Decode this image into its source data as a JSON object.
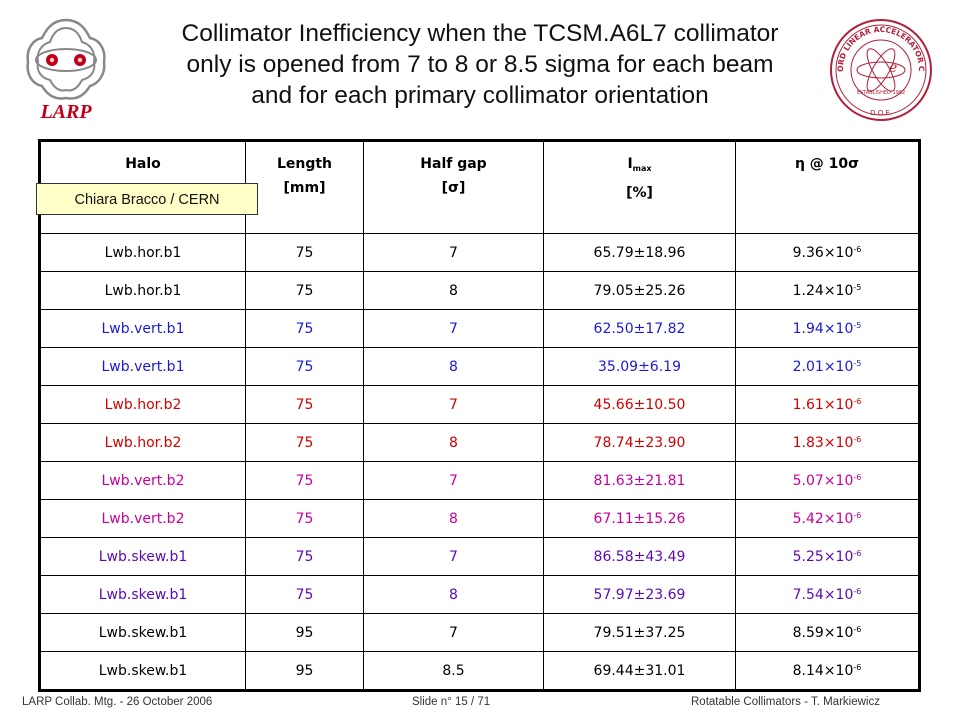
{
  "title": {
    "line1": "Collimator Inefficiency when the TCSM.A6L7 collimator",
    "line2": "only is opened from 7 to 8 or 8.5 sigma for each beam",
    "line3": "and for each primary collimator orientation"
  },
  "logos": {
    "left_text": "LARP",
    "right_text": "STANFORD LINEAR ACCELERATOR CENTER",
    "right_year": "ESTABLISHED 1962",
    "right_doe": "D.O.E."
  },
  "author_box": "Chiara Bracco / CERN",
  "table": {
    "headers": {
      "halo": "Halo",
      "length_1": "Length",
      "length_2": "[mm]",
      "halfgap_1": "Half gap",
      "halfgap_2": "[σ]",
      "imax_1": "I",
      "imax_sub": "max",
      "imax_2": "[%]",
      "eta": "η @ 10σ"
    },
    "rows": [
      {
        "halo": "Lwb.hor.b1",
        "length": "75",
        "halfgap": "7",
        "imax": "65.79±18.96",
        "eta_mant": "9.36×10",
        "eta_exp": "-6",
        "color": "black"
      },
      {
        "halo": "Lwb.hor.b1",
        "length": "75",
        "halfgap": "8",
        "imax": "79.05±25.26",
        "eta_mant": "1.24×10",
        "eta_exp": "-5",
        "color": "black"
      },
      {
        "halo": "Lwb.vert.b1",
        "length": "75",
        "halfgap": "7",
        "imax": "62.50±17.82",
        "eta_mant": "1.94×10",
        "eta_exp": "-5",
        "color": "blue"
      },
      {
        "halo": "Lwb.vert.b1",
        "length": "75",
        "halfgap": "8",
        "imax": "35.09±6.19",
        "eta_mant": "2.01×10",
        "eta_exp": "-5",
        "color": "blue"
      },
      {
        "halo": "Lwb.hor.b2",
        "length": "75",
        "halfgap": "7",
        "imax": "45.66±10.50",
        "eta_mant": "1.61×10",
        "eta_exp": "-6",
        "color": "red"
      },
      {
        "halo": "Lwb.hor.b2",
        "length": "75",
        "halfgap": "8",
        "imax": "78.74±23.90",
        "eta_mant": "1.83×10",
        "eta_exp": "-6",
        "color": "red"
      },
      {
        "halo": "Lwb.vert.b2",
        "length": "75",
        "halfgap": "7",
        "imax": "81.63±21.81",
        "eta_mant": "5.07×10",
        "eta_exp": "-6",
        "color": "magenta"
      },
      {
        "halo": "Lwb.vert.b2",
        "length": "75",
        "halfgap": "8",
        "imax": "67.11±15.26",
        "eta_mant": "5.42×10",
        "eta_exp": "-6",
        "color": "magenta"
      },
      {
        "halo": "Lwb.skew.b1",
        "length": "75",
        "halfgap": "7",
        "imax": "86.58±43.49",
        "eta_mant": "5.25×10",
        "eta_exp": "-6",
        "color": "purple"
      },
      {
        "halo": "Lwb.skew.b1",
        "length": "75",
        "halfgap": "8",
        "imax": "57.97±23.69",
        "eta_mant": "7.54×10",
        "eta_exp": "-6",
        "color": "purple"
      },
      {
        "halo": "Lwb.skew.b1",
        "length": "95",
        "halfgap": "7",
        "imax": "79.51±37.25",
        "eta_mant": "8.59×10",
        "eta_exp": "-6",
        "color": "black"
      },
      {
        "halo": "Lwb.skew.b1",
        "length": "95",
        "halfgap": "8.5",
        "imax": "69.44±31.01",
        "eta_mant": "8.14×10",
        "eta_exp": "-6",
        "color": "black"
      }
    ]
  },
  "colors": {
    "black": "#000000",
    "blue": "#1a1ad8",
    "red": "#d40000",
    "magenta": "#c8009a",
    "purple": "#5a0ab4",
    "author_bg": "#ffffc8",
    "larp_red": "#c0001a"
  },
  "footer": {
    "left": "LARP Collab. Mtg.  -  26 October 2006",
    "center": "Slide n° 15 / 71",
    "right": "Rotatable Collimators  -  T. Markiewicz"
  }
}
